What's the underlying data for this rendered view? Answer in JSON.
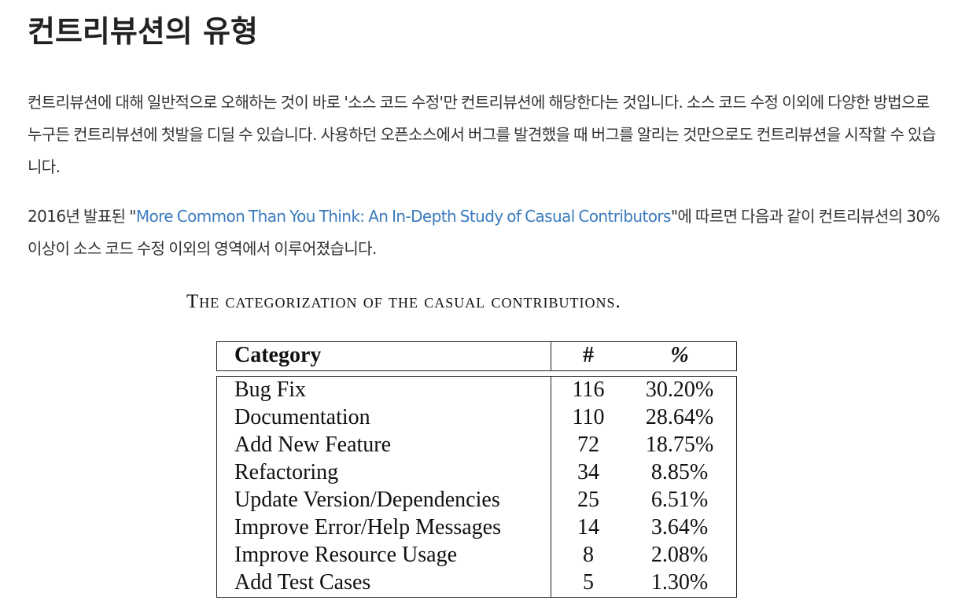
{
  "heading": "컨트리뷰션의 유형",
  "paragraph1": "컨트리뷰션에 대해 일반적으로 오해하는 것이 바로 '소스 코드 수정'만 컨트리뷰션에 해당한다는 것입니다. 소스 코드 수정 이외에 다양한 방법으로 누구든 컨트리뷰션에 첫발을 디딜 수 있습니다. 사용하던 오픈소스에서 버그를 발견했을 때 버그를 알리는 것만으로도 컨트리뷰션을 시작할 수 있습니다.",
  "paragraph2": {
    "prefix": "2016년 발표된 \"",
    "link": "More Common Than You Think: An In-Depth Study of Casual Contributors",
    "suffix": "\"에 따르면 다음과 같이 컨트리뷰션의 30% 이상이 소스 코드 수정 이외의 영역에서 이루어졌습니다."
  },
  "figure": {
    "caption": "The categorization of the casual contributions.",
    "headers": {
      "category": "Category",
      "count": "#",
      "percent": "%"
    },
    "rows": [
      {
        "category": "Bug Fix",
        "count": "116",
        "percent": "30.20%"
      },
      {
        "category": "Documentation",
        "count": "110",
        "percent": "28.64%"
      },
      {
        "category": "Add New Feature",
        "count": "72",
        "percent": "18.75%"
      },
      {
        "category": "Refactoring",
        "count": "34",
        "percent": "8.85%"
      },
      {
        "category": "Update Version/Dependencies",
        "count": "25",
        "percent": "6.51%"
      },
      {
        "category": "Improve Error/Help Messages",
        "count": "14",
        "percent": "3.64%"
      },
      {
        "category": "Improve Resource Usage",
        "count": "8",
        "percent": "2.08%"
      },
      {
        "category": "Add Test Cases",
        "count": "5",
        "percent": "1.30%"
      }
    ]
  },
  "colors": {
    "link": "#3b7bbf",
    "text": "#333333"
  }
}
